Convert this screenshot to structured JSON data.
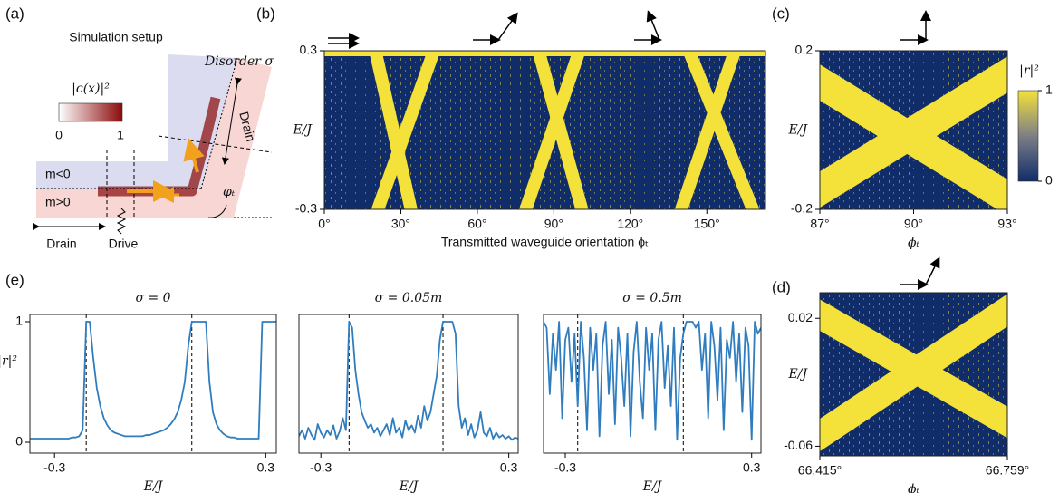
{
  "panel_labels": [
    "(a)",
    "(b)",
    "(c)",
    "(d)",
    "(e)"
  ],
  "setup": {
    "title": "Simulation setup",
    "density_label": "|c(x)|²",
    "density_ticks": [
      "0",
      "1"
    ],
    "disorder": "Disorder σ",
    "drain_top": "Drain",
    "m_neg": "m<0",
    "m_pos": "m>0",
    "angle": "φₜ",
    "drain_left": "Drain",
    "drive": "Drive"
  },
  "chart_data": [
    {
      "type": "heatmap",
      "xlabel": "Transmitted waveguide orientation ϕₜ",
      "ylabel": "E/J",
      "xlim": [
        0,
        173
      ],
      "xticks": [
        {
          "value": 0,
          "label": "0°"
        },
        {
          "value": 30,
          "label": "30°"
        },
        {
          "value": 60,
          "label": "60°"
        },
        {
          "value": 90,
          "label": "90°"
        },
        {
          "value": 120,
          "label": "120°"
        },
        {
          "value": 150,
          "label": "150°"
        }
      ],
      "ylim": [
        -0.3,
        0.3
      ],
      "yticks": [
        -0.3,
        0.3
      ],
      "colors": {
        "background": "#102d6a",
        "band": "#f4e13a"
      },
      "bands": [
        {
          "x": [
            21,
            43
          ],
          "y": [
            -0.3,
            0.3
          ]
        },
        {
          "x": [
            34,
            20
          ],
          "y": [
            -0.3,
            0.3
          ]
        },
        {
          "x": [
            101,
            84
          ],
          "y": [
            -0.3,
            0.3
          ]
        },
        {
          "x": [
            79,
            100
          ],
          "y": [
            -0.3,
            0.3
          ]
        },
        {
          "x": [
            168,
            143
          ],
          "y": [
            -0.3,
            0.3
          ]
        },
        {
          "x": [
            140,
            161
          ],
          "y": [
            -0.3,
            0.3
          ]
        }
      ]
    },
    {
      "type": "heatmap",
      "xlabel": "ϕₜ",
      "ylabel": "E/J",
      "xlim": [
        87,
        93
      ],
      "xticks": [
        {
          "value": 87,
          "label": "87°"
        },
        {
          "value": 90,
          "label": "90°"
        },
        {
          "value": 93,
          "label": "93°"
        }
      ],
      "ylim": [
        -0.2,
        0.2
      ],
      "yticks": [
        -0.2,
        0.2
      ],
      "colors": {
        "background": "#102d6a",
        "band": "#f4e13a"
      },
      "bands": [
        {
          "x": [
            87,
            93
          ],
          "y": [
            0.12,
            -0.17
          ]
        },
        {
          "x": [
            87,
            93
          ],
          "y": [
            -0.15,
            0.14
          ]
        }
      ],
      "colorbar": {
        "label": "|r|²",
        "ticks": [
          0,
          1
        ]
      }
    },
    {
      "type": "heatmap",
      "xlabel": "ϕₜ",
      "ylabel": "E/J",
      "xlim": [
        66.415,
        66.759
      ],
      "xticks": [
        {
          "value": 66.415,
          "label": "66.415°"
        },
        {
          "value": 66.759,
          "label": "66.759°"
        }
      ],
      "ylim": [
        -0.066,
        0.036
      ],
      "yticks": [
        0.02,
        -0.06
      ],
      "colors": {
        "background": "#102d6a",
        "band": "#f4e13a"
      },
      "bands": [
        {
          "x": [
            66.415,
            66.759
          ],
          "y": [
            0.022,
            -0.045
          ]
        },
        {
          "x": [
            66.415,
            66.759
          ],
          "y": [
            -0.053,
            0.025
          ]
        }
      ]
    },
    {
      "type": "line",
      "title": "σ = 0",
      "xlabel": "E/J",
      "ylabel": "|r|²",
      "color": "#2f7dbf",
      "xlim": [
        -0.37,
        0.33
      ],
      "xticks": [
        -0.3,
        0.3
      ],
      "ylim": [
        -0.09,
        1.06
      ],
      "yticks": [
        0,
        1
      ],
      "vlines": [
        -0.21,
        0.09
      ],
      "x": [
        -0.37,
        -0.36,
        -0.35,
        -0.34,
        -0.33,
        -0.32,
        -0.31,
        -0.3,
        -0.29,
        -0.28,
        -0.27,
        -0.26,
        -0.25,
        -0.24,
        -0.23,
        -0.22,
        -0.21,
        -0.2,
        -0.19,
        -0.18,
        -0.17,
        -0.16,
        -0.15,
        -0.14,
        -0.13,
        -0.12,
        -0.11,
        -0.1,
        -0.09,
        -0.08,
        -0.07,
        -0.06,
        -0.05,
        -0.04,
        -0.03,
        -0.02,
        -0.01,
        0,
        0.01,
        0.02,
        0.03,
        0.04,
        0.05,
        0.06,
        0.07,
        0.08,
        0.09,
        0.1,
        0.11,
        0.12,
        0.13,
        0.14,
        0.15,
        0.16,
        0.17,
        0.18,
        0.19,
        0.2,
        0.21,
        0.22,
        0.23,
        0.24,
        0.25,
        0.26,
        0.27,
        0.28,
        0.29,
        0.3,
        0.31,
        0.32,
        0.33
      ],
      "values": [
        0.03,
        0.03,
        0.03,
        0.03,
        0.03,
        0.03,
        0.03,
        0.03,
        0.03,
        0.03,
        0.03,
        0.03,
        0.04,
        0.04,
        0.05,
        0.1,
        1,
        1,
        0.7,
        0.45,
        0.3,
        0.2,
        0.14,
        0.1,
        0.08,
        0.07,
        0.06,
        0.05,
        0.05,
        0.05,
        0.05,
        0.05,
        0.05,
        0.06,
        0.06,
        0.07,
        0.08,
        0.09,
        0.1,
        0.12,
        0.15,
        0.19,
        0.25,
        0.35,
        0.5,
        0.8,
        1,
        1,
        1,
        1,
        1,
        0.5,
        0.25,
        0.15,
        0.1,
        0.07,
        0.05,
        0.04,
        0.04,
        0.03,
        0.03,
        0.03,
        0.03,
        0.03,
        0.03,
        0.03,
        1,
        1,
        1,
        1,
        1
      ]
    },
    {
      "type": "line",
      "title": "σ = 0.05m",
      "xlabel": "E/J",
      "color": "#2f7dbf",
      "xlim": [
        -0.37,
        0.33
      ],
      "xticks": [
        -0.3,
        0.3
      ],
      "ylim": [
        -0.09,
        1.06
      ],
      "vlines": [
        -0.21,
        0.09
      ],
      "x": [
        -0.37,
        -0.36,
        -0.35,
        -0.34,
        -0.33,
        -0.32,
        -0.31,
        -0.3,
        -0.29,
        -0.28,
        -0.27,
        -0.26,
        -0.25,
        -0.24,
        -0.23,
        -0.22,
        -0.21,
        -0.2,
        -0.19,
        -0.18,
        -0.17,
        -0.16,
        -0.15,
        -0.14,
        -0.13,
        -0.12,
        -0.11,
        -0.1,
        -0.09,
        -0.08,
        -0.07,
        -0.06,
        -0.05,
        -0.04,
        -0.03,
        -0.02,
        -0.01,
        0,
        0.01,
        0.02,
        0.03,
        0.04,
        0.05,
        0.06,
        0.07,
        0.08,
        0.09,
        0.1,
        0.11,
        0.12,
        0.13,
        0.14,
        0.15,
        0.16,
        0.17,
        0.18,
        0.19,
        0.2,
        0.21,
        0.22,
        0.23,
        0.24,
        0.25,
        0.26,
        0.27,
        0.28,
        0.29,
        0.3,
        0.31,
        0.32,
        0.33
      ],
      "values": [
        0.05,
        0.1,
        0.03,
        0.12,
        0.06,
        0.02,
        0.15,
        0.08,
        0.04,
        0.1,
        0.06,
        0.14,
        0.03,
        0.09,
        0.2,
        0.1,
        1,
        0.95,
        0.6,
        0.4,
        0.25,
        0.18,
        0.12,
        0.15,
        0.08,
        0.12,
        0.05,
        0.1,
        0.15,
        0.06,
        0.2,
        0.08,
        0.12,
        0.04,
        0.18,
        0.1,
        0.14,
        0.08,
        0.22,
        0.12,
        0.3,
        0.18,
        0.25,
        0.4,
        0.55,
        0.85,
        1,
        1,
        1,
        1,
        0.9,
        0.3,
        0.12,
        0.2,
        0.06,
        0.15,
        0.04,
        0.1,
        0.25,
        0.08,
        0.05,
        0.12,
        0.03,
        0.08,
        0.04,
        0.06,
        0.03,
        0.05,
        0.02,
        0.04,
        0.03
      ]
    },
    {
      "type": "line",
      "title": "σ = 0.5m",
      "xlabel": "E/J",
      "color": "#2f7dbf",
      "xlim": [
        -0.37,
        0.33
      ],
      "xticks": [
        -0.3,
        0.3
      ],
      "ylim": [
        -0.09,
        1.06
      ],
      "vlines": [
        -0.26,
        0.08
      ],
      "x": [
        -0.37,
        -0.36,
        -0.35,
        -0.34,
        -0.33,
        -0.32,
        -0.31,
        -0.3,
        -0.29,
        -0.28,
        -0.27,
        -0.26,
        -0.25,
        -0.24,
        -0.23,
        -0.22,
        -0.21,
        -0.2,
        -0.19,
        -0.18,
        -0.17,
        -0.16,
        -0.15,
        -0.14,
        -0.13,
        -0.12,
        -0.11,
        -0.1,
        -0.09,
        -0.08,
        -0.07,
        -0.06,
        -0.05,
        -0.04,
        -0.03,
        -0.02,
        -0.01,
        0,
        0.01,
        0.02,
        0.03,
        0.04,
        0.05,
        0.06,
        0.07,
        0.08,
        0.09,
        0.1,
        0.11,
        0.12,
        0.13,
        0.14,
        0.15,
        0.16,
        0.17,
        0.18,
        0.19,
        0.2,
        0.21,
        0.22,
        0.23,
        0.24,
        0.25,
        0.26,
        0.27,
        0.28,
        0.29,
        0.3,
        0.31,
        0.32,
        0.33
      ],
      "values": [
        1,
        0.95,
        0.4,
        0.9,
        0.6,
        1,
        0.2,
        0.85,
        0.95,
        0.5,
        0.9,
        0.3,
        1,
        0.7,
        0.1,
        0.95,
        0.6,
        0.9,
        0.05,
        0.8,
        1,
        0.4,
        0.85,
        0.15,
        0.95,
        0.7,
        0.3,
        0.9,
        0.05,
        0.75,
        1,
        0.5,
        0.2,
        0.95,
        0.6,
        0.9,
        0.1,
        0.85,
        1,
        0.45,
        0.8,
        0.3,
        0.95,
        0.02,
        0.7,
        0.9,
        1,
        1,
        1,
        0.95,
        1,
        0.6,
        0.9,
        0.2,
        1,
        0.8,
        0.35,
        0.95,
        0.1,
        0.85,
        0.7,
        1,
        0.5,
        0.9,
        0.25,
        0.95,
        0.8,
        0.02,
        1,
        0.9,
        0.95
      ]
    }
  ]
}
